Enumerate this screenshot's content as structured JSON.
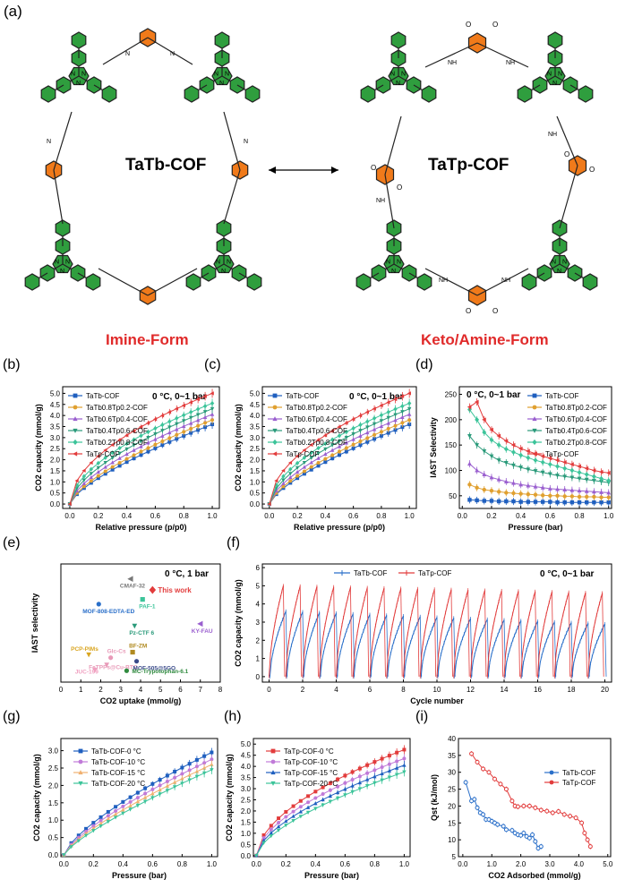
{
  "figure": {
    "schemes": {
      "left": {
        "panel_label": "(a)",
        "name": "TaTb-COF",
        "form": "Imine-Form"
      },
      "right": {
        "name": "TaTp-COF",
        "form": "Keto/Amine-Form"
      },
      "bond_labels": {
        "imine": "N",
        "amine": "NH",
        "keto": "O"
      }
    },
    "colors": {
      "phenyl": "#2f9e3e",
      "core": "#f07a1a",
      "form_text": "#e02a2a"
    }
  },
  "chart_data": [
    {
      "id": "b",
      "panel_label": "(b)",
      "type": "line",
      "xlabel": "Relative pressure (p/p0)",
      "ylabel": "CO2 capacity (mmol/g)",
      "xlim": [
        -0.05,
        1.05
      ],
      "ylim": [
        -0.2,
        5.3
      ],
      "xticks": [
        "0.0",
        "0.2",
        "0.4",
        "0.6",
        "0.8",
        "1.0"
      ],
      "xtick_values": [
        0,
        0.2,
        0.4,
        0.6,
        0.8,
        1.0
      ],
      "yticks": [
        "0.0",
        "0.5",
        "1.0",
        "1.5",
        "2.0",
        "2.5",
        "3.0",
        "3.5",
        "4.0",
        "4.5",
        "5.0"
      ],
      "ytick_values": [
        0,
        0.5,
        1,
        1.5,
        2,
        2.5,
        3,
        3.5,
        4,
        4.5,
        5
      ],
      "annotation": "0 °C, 0~1 bar",
      "legend_position": "top-left",
      "series": [
        {
          "name": "TaTb-COF",
          "color": "#1f5fbf",
          "marker": "square",
          "end": 3.6,
          "curve": 0.7
        },
        {
          "name": "TaTb0.8Tp0.2-COF",
          "color": "#e0a030",
          "marker": "circle",
          "end": 3.8,
          "curve": 0.68
        },
        {
          "name": "TaTb0.6Tp0.4-COF",
          "color": "#9a5fcf",
          "marker": "triangle-up",
          "end": 4.05,
          "curve": 0.64
        },
        {
          "name": "TaTb0.4Tp0.6-COF",
          "color": "#2a9a7a",
          "marker": "triangle-down",
          "end": 4.3,
          "curve": 0.6
        },
        {
          "name": "TaTb0.2Tp0.8-COF",
          "color": "#3cc49a",
          "marker": "diamond",
          "end": 4.55,
          "curve": 0.56
        },
        {
          "name": "TaTp-COF",
          "color": "#e23c3c",
          "marker": "left-triangle",
          "end": 5.0,
          "curve": 0.52
        }
      ]
    },
    {
      "id": "c",
      "panel_label": "(c)",
      "type": "line",
      "xlabel": "Relative pressure (p/p0)",
      "ylabel": "CO2 capacity (mmol/g)",
      "xlim": [
        -0.05,
        1.05
      ],
      "ylim": [
        -0.2,
        5.3
      ],
      "xticks": [
        "0.0",
        "0.2",
        "0.4",
        "0.6",
        "0.8",
        "1.0"
      ],
      "xtick_values": [
        0,
        0.2,
        0.4,
        0.6,
        0.8,
        1.0
      ],
      "yticks": [
        "0.0",
        "0.5",
        "1.0",
        "1.5",
        "2.0",
        "2.5",
        "3.0",
        "3.5",
        "4.0",
        "4.5",
        "5.0"
      ],
      "ytick_values": [
        0,
        0.5,
        1,
        1.5,
        2,
        2.5,
        3,
        3.5,
        4,
        4.5,
        5
      ],
      "annotation": "0 °C, 0~1 bar",
      "legend_position": "top-left",
      "series": [
        {
          "name": "TaTb-COF",
          "color": "#1f5fbf",
          "marker": "square",
          "end": 3.6,
          "curve": 0.7
        },
        {
          "name": "TaTb0.8Tp0.2-COF",
          "color": "#e0a030",
          "marker": "circle",
          "end": 3.8,
          "curve": 0.68
        },
        {
          "name": "TaTb0.6Tp0.4-COF",
          "color": "#9a5fcf",
          "marker": "triangle-up",
          "end": 4.05,
          "curve": 0.64
        },
        {
          "name": "TaTb0.4Tp0.6-COF",
          "color": "#2a9a7a",
          "marker": "triangle-down",
          "end": 4.3,
          "curve": 0.6
        },
        {
          "name": "TaTb0.2Tp0.8-COF",
          "color": "#3cc49a",
          "marker": "diamond",
          "end": 4.55,
          "curve": 0.56
        },
        {
          "name": "TaTp-COF",
          "color": "#e23c3c",
          "marker": "left-triangle",
          "end": 5.0,
          "curve": 0.52
        }
      ]
    },
    {
      "id": "d",
      "panel_label": "(d)",
      "type": "line",
      "xlabel": "Pressure (bar)",
      "ylabel": "IAST Selectivity",
      "xlim": [
        -0.02,
        1.02
      ],
      "ylim": [
        25,
        265
      ],
      "xticks": [
        "0.0",
        "0.2",
        "0.4",
        "0.6",
        "0.8",
        "1.0"
      ],
      "xtick_values": [
        0,
        0.2,
        0.4,
        0.6,
        0.8,
        1.0
      ],
      "yticks": [
        "50",
        "100",
        "150",
        "200",
        "250"
      ],
      "ytick_values": [
        50,
        100,
        150,
        200,
        250
      ],
      "annotation": "0 °C, 0~1 bar",
      "legend_position": "top-right",
      "x": [
        0.05,
        0.1,
        0.15,
        0.2,
        0.25,
        0.3,
        0.35,
        0.4,
        0.45,
        0.5,
        0.55,
        0.6,
        0.65,
        0.7,
        0.75,
        0.8,
        0.85,
        0.9,
        0.95,
        1.0
      ],
      "series": [
        {
          "name": "TaTb-COF",
          "color": "#1f5fbf",
          "marker": "square",
          "values": [
            42,
            41,
            40,
            40,
            39,
            39,
            39,
            38,
            38,
            38,
            38,
            38,
            37,
            37,
            37,
            37,
            37,
            37,
            37,
            37
          ]
        },
        {
          "name": "TaTb0.8Tp0.2-COF",
          "color": "#e0a030",
          "marker": "circle",
          "values": [
            72,
            66,
            62,
            60,
            58,
            56,
            55,
            54,
            53,
            52,
            51,
            50,
            50,
            49,
            49,
            48,
            48,
            48,
            47,
            47
          ]
        },
        {
          "name": "TaTb0.6Tp0.4-COF",
          "color": "#9a5fcf",
          "marker": "triangle-up",
          "values": [
            113,
            100,
            92,
            86,
            82,
            78,
            75,
            72,
            70,
            68,
            66,
            64,
            63,
            62,
            61,
            60,
            59,
            58,
            57,
            56
          ]
        },
        {
          "name": "TaTb0.4Tp0.6-COF",
          "color": "#2a9a7a",
          "marker": "triangle-down",
          "values": [
            168,
            150,
            138,
            128,
            120,
            115,
            110,
            106,
            102,
            99,
            96,
            93,
            90,
            88,
            86,
            84,
            82,
            80,
            78,
            76
          ]
        },
        {
          "name": "TaTb0.2Tp0.8-COF",
          "color": "#3cc49a",
          "marker": "diamond",
          "values": [
            220,
            200,
            175,
            160,
            150,
            142,
            136,
            130,
            125,
            120,
            116,
            112,
            108,
            104,
            100,
            96,
            92,
            88,
            84,
            80
          ]
        },
        {
          "name": "TaTp-COF",
          "color": "#e23c3c",
          "marker": "left-triangle",
          "values": [
            225,
            235,
            200,
            180,
            168,
            158,
            150,
            143,
            138,
            133,
            128,
            124,
            120,
            116,
            112,
            108,
            104,
            100,
            97,
            95
          ]
        }
      ]
    },
    {
      "id": "e",
      "panel_label": "(e)",
      "type": "scatter",
      "xlabel": "CO2 uptake (mmol/g)",
      "ylabel": "IAST selectivity",
      "xlim": [
        0,
        8
      ],
      "ylim": [
        0,
        300
      ],
      "xticks": [
        "0",
        "1",
        "2",
        "3",
        "4",
        "5",
        "6",
        "7",
        "8"
      ],
      "xtick_values": [
        0,
        1,
        2,
        3,
        4,
        5,
        6,
        7,
        8
      ],
      "annotation": "0 °C, 1 bar",
      "points": [
        {
          "label": "This work",
          "x": 4.6,
          "y": 234,
          "color": "#e23c3c"
        },
        {
          "label": "CMAF-32",
          "x": 3.5,
          "y": 262,
          "color": "#777777"
        },
        {
          "label": "PAF-1",
          "x": 4.1,
          "y": 210,
          "color": "#3cc49a"
        },
        {
          "label": "MOF-808-EDTA-ED",
          "x": 1.9,
          "y": 198,
          "color": "#2a6fc9"
        },
        {
          "label": "Pz-CTF 6",
          "x": 3.7,
          "y": 143,
          "color": "#2a9a7a"
        },
        {
          "label": "KY-FAU",
          "x": 7.0,
          "y": 148,
          "color": "#9a5fcf"
        },
        {
          "label": "PCP-PIMs",
          "x": 1.4,
          "y": 70,
          "color": "#d9a520"
        },
        {
          "label": "Glc-Cs",
          "x": 2.5,
          "y": 62,
          "color": "#e89ab8"
        },
        {
          "label": "BF-ZM",
          "x": 3.6,
          "y": 76,
          "color": "#b08a20"
        },
        {
          "label": "FeTPPs@Cu-BTC",
          "x": 2.3,
          "y": 44,
          "color": "#e89ab8"
        },
        {
          "label": "MOF-505@5GO",
          "x": 3.8,
          "y": 53,
          "color": "#3a4a8a"
        },
        {
          "label": "JUC-199",
          "x": 1.7,
          "y": 31,
          "color": "#f0a0c0"
        },
        {
          "label": "MC-Trypotophan-6.1",
          "x": 3.3,
          "y": 29,
          "color": "#2f8a3e"
        }
      ]
    },
    {
      "id": "f",
      "panel_label": "(f)",
      "type": "line",
      "xlabel": "Cycle number",
      "ylabel": "CO2 capacity (mmol/g)",
      "xlim": [
        -0.4,
        20.4
      ],
      "ylim": [
        -0.3,
        6.2
      ],
      "xticks": [
        "0",
        "2",
        "4",
        "6",
        "8",
        "10",
        "12",
        "14",
        "16",
        "18",
        "20"
      ],
      "xtick_values": [
        0,
        2,
        4,
        6,
        8,
        10,
        12,
        14,
        16,
        18,
        20
      ],
      "yticks": [
        "0",
        "1",
        "2",
        "3",
        "4",
        "5",
        "6"
      ],
      "ytick_values": [
        0,
        1,
        2,
        3,
        4,
        5,
        6
      ],
      "annotation": "0 °C, 0~1 bar",
      "legend_position": "top",
      "cycles": 20,
      "series": [
        {
          "name": "TaTb-COF",
          "color": "#2a6fc9",
          "marker": "tick",
          "peak": 3.6,
          "last_peak": 2.9
        },
        {
          "name": "TaTp-COF",
          "color": "#e23c3c",
          "marker": "tick",
          "peak": 5.0,
          "last_peak": 4.6
        }
      ]
    },
    {
      "id": "g",
      "panel_label": "(g)",
      "type": "line",
      "xlabel": "Pressure (bar)",
      "ylabel": "CO2 capacity (mmol/g)",
      "xlim": [
        -0.02,
        1.04
      ],
      "ylim": [
        -0.05,
        3.35
      ],
      "xticks": [
        "0.0",
        "0.2",
        "0.4",
        "0.6",
        "0.8",
        "1.0"
      ],
      "xtick_values": [
        0,
        0.2,
        0.4,
        0.6,
        0.8,
        1.0
      ],
      "yticks": [
        "0.0",
        "0.5",
        "1.0",
        "1.5",
        "2.0",
        "2.5",
        "3.0"
      ],
      "ytick_values": [
        0,
        0.5,
        1,
        1.5,
        2,
        2.5,
        3
      ],
      "legend_position": "top-left",
      "series": [
        {
          "name": "TaTb-COF-0 °C",
          "color": "#1f5fbf",
          "marker": "square",
          "end": 2.95,
          "curve": 0.72
        },
        {
          "name": "TaTb-COF-10 °C",
          "color": "#c07ad8",
          "marker": "circle",
          "end": 2.75,
          "curve": 0.74
        },
        {
          "name": "TaTb-COF-15 °C",
          "color": "#f0b070",
          "marker": "triangle-up",
          "end": 2.6,
          "curve": 0.76
        },
        {
          "name": "TaTb-COF-20 °C",
          "color": "#3cc49a",
          "marker": "triangle-down",
          "end": 2.45,
          "curve": 0.78
        }
      ]
    },
    {
      "id": "h",
      "panel_label": "(h)",
      "type": "line",
      "xlabel": "Pressure (bar)",
      "ylabel": "CO2 capacity (mmol/g)",
      "xlim": [
        -0.02,
        1.04
      ],
      "ylim": [
        -0.05,
        5.25
      ],
      "xticks": [
        "0.0",
        "0.2",
        "0.4",
        "0.6",
        "0.8",
        "1.0"
      ],
      "xtick_values": [
        0,
        0.2,
        0.4,
        0.6,
        0.8,
        1.0
      ],
      "yticks": [
        "0.0",
        "0.5",
        "1.0",
        "1.5",
        "2.0",
        "2.5",
        "3.0",
        "3.5",
        "4.0",
        "4.5",
        "5.0"
      ],
      "ytick_values": [
        0,
        0.5,
        1,
        1.5,
        2,
        2.5,
        3,
        3.5,
        4,
        4.5,
        5
      ],
      "legend_position": "top-left",
      "series": [
        {
          "name": "TaTp-COF-0 °C",
          "color": "#e23c3c",
          "marker": "square",
          "end": 4.75,
          "curve": 0.55
        },
        {
          "name": "TaTp-COF-10 °C",
          "color": "#c07ad8",
          "marker": "circle",
          "end": 4.35,
          "curve": 0.57
        },
        {
          "name": "TaTp-COF-15 °C",
          "color": "#1f5fbf",
          "marker": "triangle-up",
          "end": 4.05,
          "curve": 0.6
        },
        {
          "name": "TaTp-COF-20 °C",
          "color": "#3cc49a",
          "marker": "triangle-down",
          "end": 3.75,
          "curve": 0.63
        }
      ]
    },
    {
      "id": "i",
      "panel_label": "(i)",
      "type": "line",
      "xlabel": "CO2 Adsorbed (mmol/g)",
      "ylabel": "Qst (kJ/mol)",
      "xlim": [
        -0.15,
        5.1
      ],
      "ylim": [
        5,
        40
      ],
      "xticks": [
        "0.0",
        "1.0",
        "2.0",
        "3.0",
        "4.0",
        "5.0"
      ],
      "xtick_values": [
        0,
        1,
        2,
        3,
        4,
        5
      ],
      "yticks": [
        "5",
        "10",
        "15",
        "20",
        "25",
        "30",
        "35",
        "40"
      ],
      "ytick_values": [
        5,
        10,
        15,
        20,
        25,
        30,
        35,
        40
      ],
      "legend_position": "center-right",
      "series": [
        {
          "name": "TaTb-COF",
          "color": "#2a6fc9",
          "marker": "circle",
          "x": [
            0.1,
            0.3,
            0.4,
            0.5,
            0.6,
            0.7,
            0.8,
            0.9,
            1.0,
            1.1,
            1.2,
            1.4,
            1.5,
            1.7,
            1.8,
            1.9,
            2.0,
            2.1,
            2.2,
            2.3,
            2.4,
            2.5,
            2.6,
            2.7
          ],
          "values": [
            27,
            21.5,
            22,
            19.5,
            18,
            17.5,
            16,
            16,
            15.5,
            15,
            14.5,
            14,
            13,
            12.8,
            12,
            11.5,
            11.3,
            12,
            11,
            10.5,
            11.5,
            9.5,
            7.5,
            8
          ]
        },
        {
          "name": "TaTp-COF",
          "color": "#e23c3c",
          "marker": "circle",
          "x": [
            0.3,
            0.5,
            0.7,
            0.9,
            1.1,
            1.3,
            1.5,
            1.7,
            1.8,
            1.9,
            2.1,
            2.3,
            2.5,
            2.7,
            2.9,
            3.1,
            3.3,
            3.5,
            3.7,
            3.9,
            4.1,
            4.2,
            4.3,
            4.4
          ],
          "values": [
            35.5,
            33,
            31,
            30,
            28,
            26.5,
            25,
            21.5,
            20,
            19.8,
            20,
            20,
            19.5,
            18.8,
            18.5,
            18,
            18.4,
            17.5,
            17,
            16.5,
            15,
            12,
            10,
            8
          ]
        }
      ]
    }
  ]
}
